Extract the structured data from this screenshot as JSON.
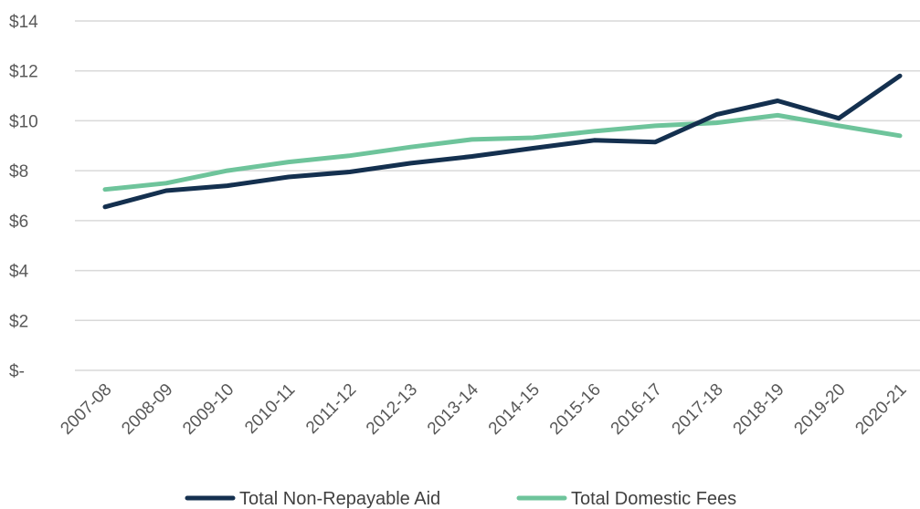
{
  "chart_data": {
    "type": "line",
    "x": [
      "2007-08",
      "2008-09",
      "2009-10",
      "2010-11",
      "2011-12",
      "2012-13",
      "2013-14",
      "2014-15",
      "2015-16",
      "2016-17",
      "2017-18",
      "2018-19",
      "2019-20",
      "2020-21"
    ],
    "series": [
      {
        "name": "Total Non-Repayable Aid",
        "color": "#14304f",
        "values": [
          6.55,
          7.2,
          7.4,
          7.75,
          7.95,
          8.3,
          8.57,
          8.9,
          9.22,
          9.15,
          10.25,
          10.8,
          10.1,
          11.8
        ]
      },
      {
        "name": "Total Domestic Fees",
        "color": "#6ec49b",
        "values": [
          7.25,
          7.5,
          8.0,
          8.35,
          8.6,
          8.95,
          9.25,
          9.32,
          9.58,
          9.8,
          9.92,
          10.22,
          9.8,
          9.4
        ]
      }
    ],
    "y_ticks": [
      "$-",
      "$2",
      "$4",
      "$6",
      "$8",
      "$10",
      "$12",
      "$14"
    ],
    "ylim": [
      0,
      14
    ],
    "grid": true,
    "legend_position": "bottom"
  }
}
